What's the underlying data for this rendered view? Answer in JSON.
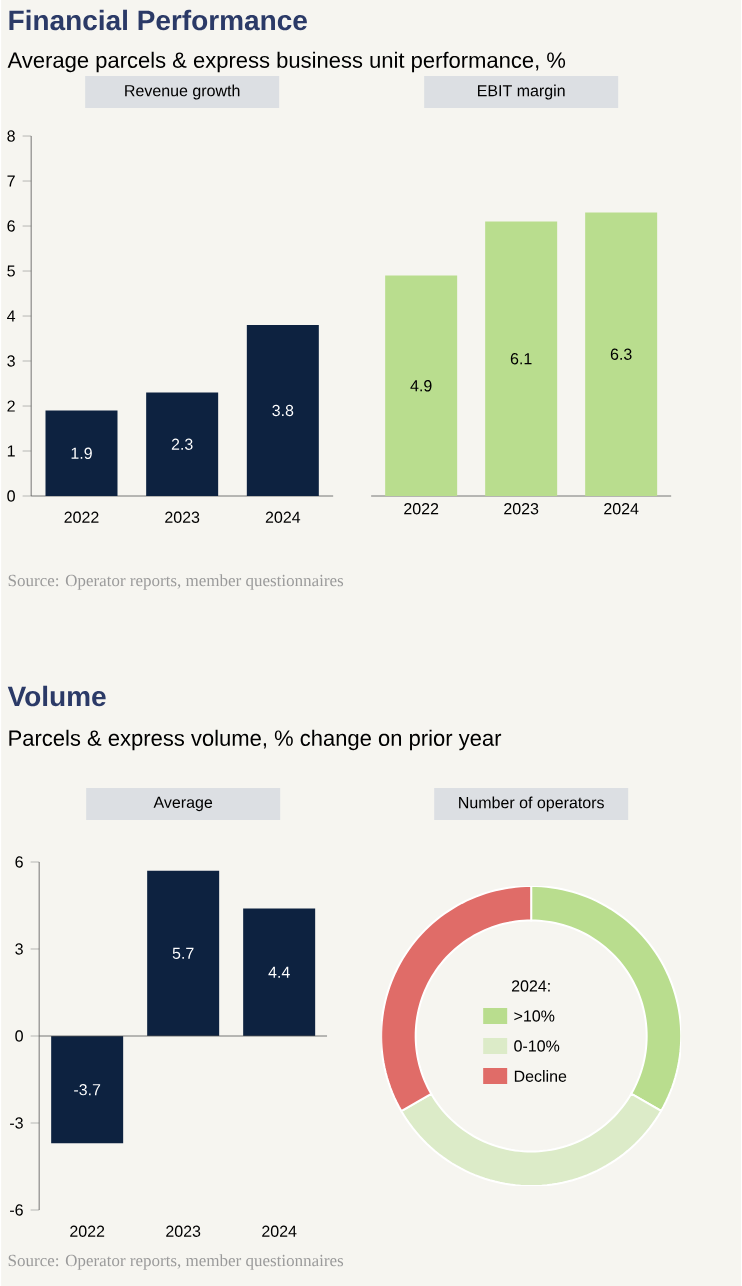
{
  "chart_data": [
    {
      "type": "bar",
      "title": "Revenue growth",
      "categories": [
        "2022",
        "2023",
        "2024"
      ],
      "values": [
        1.9,
        2.3,
        3.8
      ],
      "color": "#0d2240",
      "ylim": [
        0,
        8
      ],
      "yticks": [
        0,
        1,
        2,
        3,
        4,
        5,
        6,
        7,
        8
      ],
      "data_labels": true,
      "annotations": [
        "Financial Performance",
        "Average parcels & express business unit performance, %"
      ]
    },
    {
      "type": "bar",
      "title": "EBIT margin",
      "categories": [
        "2022",
        "2023",
        "2024"
      ],
      "values": [
        4.9,
        6.1,
        6.3
      ],
      "color": "#b9dd8e",
      "ylim": [
        0,
        8
      ],
      "tick_labels": "x",
      "data_labels": true,
      "annotations": [
        "Source: Operator reports, member questionnaires"
      ]
    },
    {
      "type": "bar",
      "title": "Average",
      "categories": [
        "2022",
        "2023",
        "2024"
      ],
      "values": [
        -3.7,
        5.7,
        4.4
      ],
      "color": "#0d2240",
      "ylim": [
        -6,
        6
      ],
      "yticks": [
        -6,
        -3,
        0,
        3,
        6
      ],
      "data_labels": true,
      "annotations": [
        "Volume",
        "Parcels & express volume, % change on prior year"
      ]
    },
    {
      "type": "donut",
      "title": "Number of operators",
      "legend_title": "2024:",
      "legend": "center",
      "categories": [
        ">10%",
        "0-10%",
        "Decline"
      ],
      "values": [
        33.33,
        33.33,
        33.34
      ],
      "colors": [
        "#b9dd8e",
        "#dcebc8",
        "#e06c68"
      ],
      "annotations": [
        "Source: Operator reports, member questionnaires"
      ]
    }
  ]
}
